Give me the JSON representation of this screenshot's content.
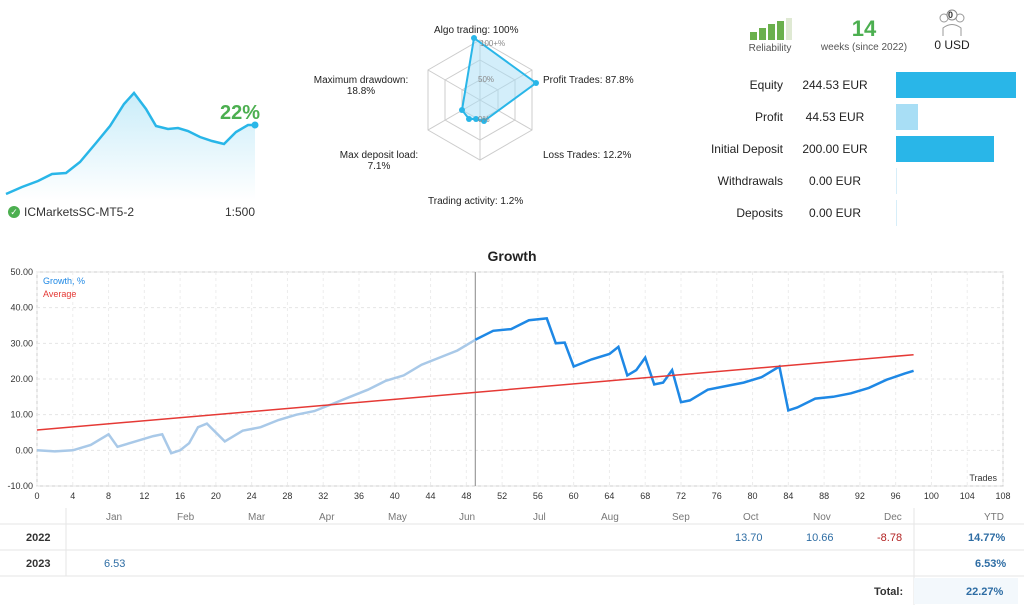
{
  "mini": {
    "pct": "22%",
    "broker": "ICMarketsSC-MT5-2",
    "leverage": "1:500",
    "line_color": "#29b6e8"
  },
  "radar": {
    "labels": {
      "algo": "Algo trading: 100%",
      "profit": "Profit Trades: 87.8%",
      "loss": "Loss Trades: 12.2%",
      "activity": "Trading activity: 1.2%",
      "deposit_load_1": "Max deposit load:",
      "deposit_load_2": "7.1%",
      "drawdown_1": "Maximum drawdown:",
      "drawdown_2": "18.8%"
    },
    "scale": {
      "top": "100+%",
      "mid": "50%",
      "low": "0%"
    }
  },
  "top_right": {
    "reliability_label": "Reliability",
    "weeks_num": "14",
    "weeks_label": "weeks (since 2022)",
    "subscribers": "0",
    "usd": "0 USD"
  },
  "stats": [
    {
      "name": "Equity",
      "value": "244.53 EUR",
      "fill": 1.0,
      "color": "#29b6e8"
    },
    {
      "name": "Profit",
      "value": "44.53 EUR",
      "fill": 0.18,
      "color": "#a8def5"
    },
    {
      "name": "Initial Deposit",
      "value": "200.00 EUR",
      "fill": 0.82,
      "color": "#29b6e8"
    },
    {
      "name": "Withdrawals",
      "value": "0.00 EUR",
      "fill": 0.0,
      "color": "#29b6e8"
    },
    {
      "name": "Deposits",
      "value": "0.00 EUR",
      "fill": 0.0,
      "color": "#29b6e8"
    }
  ],
  "chart_data": {
    "type": "line",
    "title": "Growth",
    "legend": [
      "Growth, %",
      "Average"
    ],
    "xlabel": "Trades",
    "xlim": [
      0,
      108
    ],
    "ylim": [
      -10,
      50
    ],
    "x_ticks": [
      "0",
      "4",
      "8",
      "12",
      "16",
      "20",
      "24",
      "28",
      "32",
      "36",
      "40",
      "44",
      "48",
      "52",
      "56",
      "60",
      "64",
      "68",
      "72",
      "76",
      "80",
      "84",
      "88",
      "92",
      "96",
      "100",
      "104",
      "108"
    ],
    "y_ticks": [
      "-10.00",
      "0.00",
      "10.00",
      "20.00",
      "30.00",
      "40.00",
      "50.00"
    ],
    "months": [
      "Jan",
      "Feb",
      "Mar",
      "Apr",
      "May",
      "Jun",
      "Jul",
      "Aug",
      "Sep",
      "Oct",
      "Nov",
      "Dec"
    ],
    "series": [
      {
        "name": "Growth, %",
        "color": "#a9c9e8",
        "x": [
          0,
          2,
          4,
          6,
          8,
          9,
          11,
          13,
          14,
          15,
          16,
          17,
          18,
          19,
          21,
          23,
          25,
          27,
          29,
          31,
          33,
          35,
          37,
          39,
          41,
          43,
          45,
          47,
          49
        ],
        "y": [
          0,
          -0.3,
          0,
          1.5,
          4.5,
          1,
          2.5,
          4,
          4.5,
          -0.8,
          0,
          2,
          6.5,
          7.5,
          2.5,
          5.5,
          6.5,
          8.5,
          10,
          11,
          13,
          15,
          17,
          19.5,
          21,
          24,
          26,
          28,
          31
        ]
      },
      {
        "name": "",
        "color": "#1e88e5",
        "x": [
          49,
          51,
          53,
          55,
          57,
          58,
          59,
          60,
          62,
          64,
          65,
          66,
          67,
          68,
          69,
          70,
          71,
          72,
          73,
          75,
          77,
          79,
          81,
          83,
          84,
          85,
          87,
          89,
          91,
          93,
          95,
          97,
          98
        ],
        "y": [
          31,
          33.5,
          34,
          36.5,
          37,
          30,
          30.2,
          23.5,
          25.5,
          27,
          29,
          21,
          22.5,
          26,
          18.5,
          19,
          22.5,
          13.5,
          14,
          17,
          18,
          19,
          20.5,
          23.5,
          11.2,
          12,
          14.5,
          15,
          16,
          17.5,
          19.8,
          21.5,
          22.3
        ]
      },
      {
        "name": "Average",
        "color": "#e53935",
        "x": [
          0,
          98
        ],
        "y": [
          5.7,
          26.8
        ]
      }
    ]
  },
  "table": {
    "ytd_label": "YTD",
    "total_label": "Total:",
    "total_value": "22.27%",
    "rows": [
      {
        "year": "2022",
        "cells": [
          "",
          "",
          "",
          "",
          "",
          "",
          "",
          "",
          "",
          "13.70",
          "10.66",
          "-8.78"
        ],
        "ytd": "14.77%"
      },
      {
        "year": "2023",
        "cells": [
          "6.53",
          "",
          "",
          "",
          "",
          "",
          "",
          "",
          "",
          "",
          "",
          ""
        ],
        "ytd": "6.53%"
      }
    ]
  }
}
